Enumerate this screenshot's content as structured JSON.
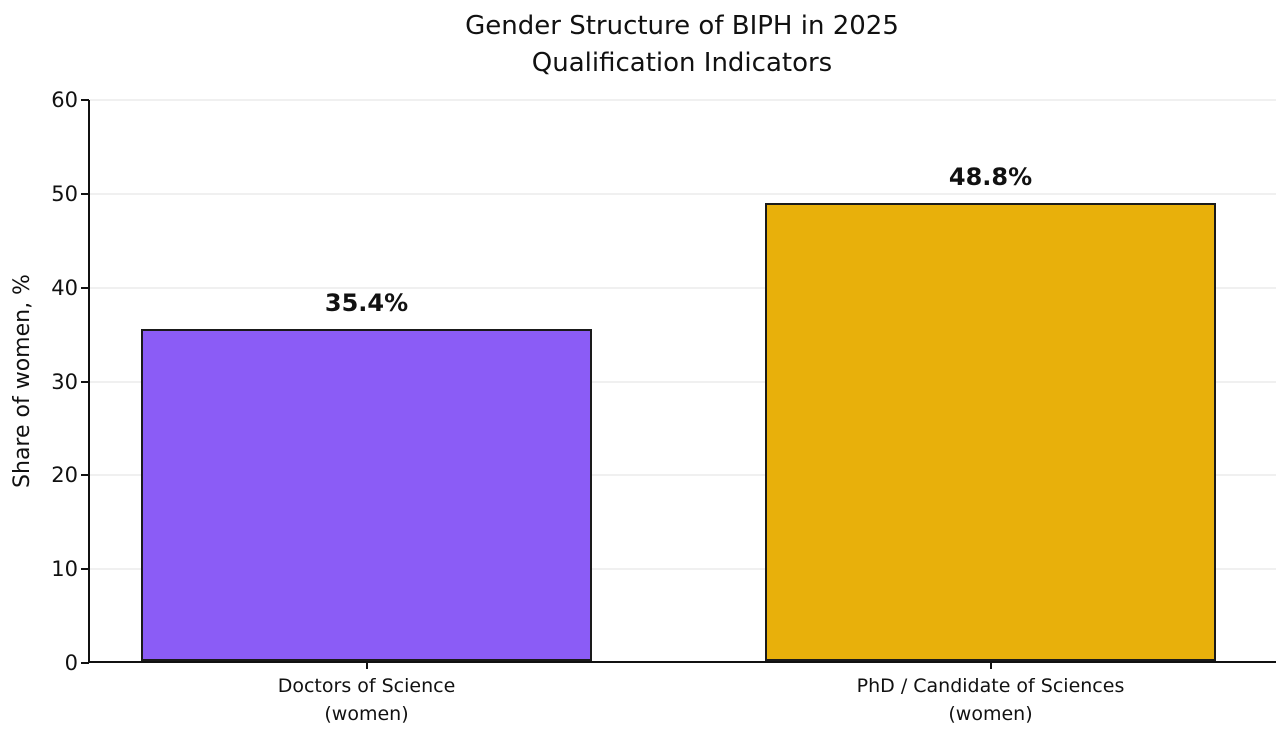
{
  "figure": {
    "title": "Gender Structure of BIPH in 2025\nQualification Indicators"
  },
  "chart_data": {
    "type": "bar",
    "title": "Gender Structure of BIPH in 2025\nQualification Indicators",
    "categories": [
      "Doctors of Science\n(women)",
      "PhD / Candidate of Sciences\n(women)"
    ],
    "values": [
      35.4,
      48.8
    ],
    "value_labels": [
      "35.4%",
      "48.8%"
    ],
    "series": [
      {
        "name": "Share of women",
        "values": [
          35.4,
          48.8
        ]
      }
    ],
    "bar_colors": [
      "#8b5cf6",
      "#e8b00b"
    ],
    "bar_edge_color": "#1a1a1a",
    "xlabel": "",
    "ylabel": "Share of women, %",
    "ylim": [
      0,
      60
    ],
    "yticks": [
      0,
      10,
      20,
      30,
      40,
      50,
      60
    ],
    "grid": "horizontal-light",
    "gridline_color": "#f0f0f0",
    "legend": "none",
    "background_color": "#ffffff"
  }
}
